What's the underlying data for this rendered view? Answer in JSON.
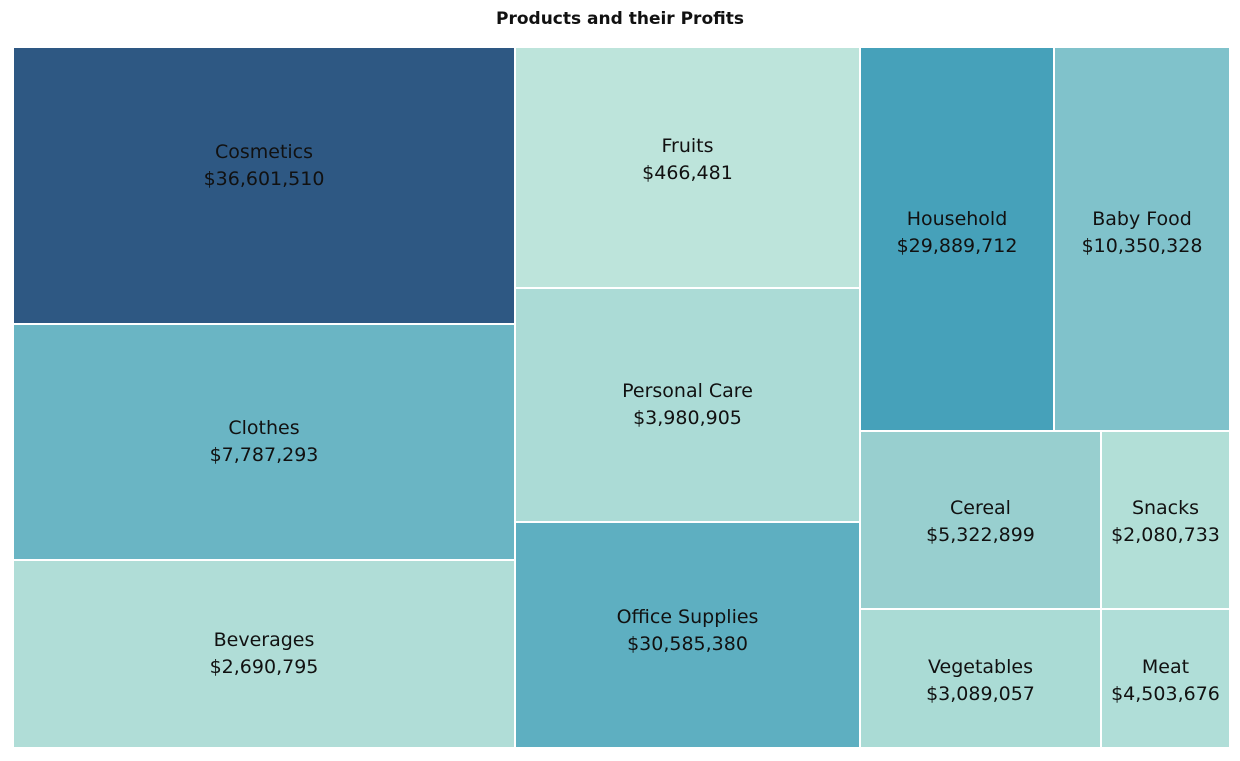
{
  "chart_data": {
    "type": "treemap",
    "title": "Products and their Profits",
    "value_format": "currency_usd",
    "items": [
      {
        "name": "Cosmetics",
        "value": 36601510,
        "label": "$36,601,510",
        "color": "#2e5883"
      },
      {
        "name": "Clothes",
        "value": 7787293,
        "label": "$7,787,293",
        "color": "#6ab5c4"
      },
      {
        "name": "Beverages",
        "value": 2690795,
        "label": "$2,690,795",
        "color": "#b0ddd7"
      },
      {
        "name": "Fruits",
        "value": 466481,
        "label": "$466,481",
        "color": "#bde4db"
      },
      {
        "name": "Personal Care",
        "value": 3980905,
        "label": "$3,980,905",
        "color": "#abdbd6"
      },
      {
        "name": "Office Supplies",
        "value": 30585380,
        "label": "$30,585,380",
        "color": "#5eafc1"
      },
      {
        "name": "Household",
        "value": 29889712,
        "label": "$29,889,712",
        "color": "#46a1ba"
      },
      {
        "name": "Baby Food",
        "value": 10350328,
        "label": "$10,350,328",
        "color": "#80c2cb"
      },
      {
        "name": "Cereal",
        "value": 5322899,
        "label": "$5,322,899",
        "color": "#98cfcf"
      },
      {
        "name": "Snacks",
        "value": 2080733,
        "label": "$2,080,733",
        "color": "#b2dfd7"
      },
      {
        "name": "Vegetables",
        "value": 3089057,
        "label": "$3,089,057",
        "color": "#aadbd5"
      },
      {
        "name": "Meat",
        "value": 4503676,
        "label": "$4,503,676",
        "color": "#b0ded8"
      }
    ]
  }
}
